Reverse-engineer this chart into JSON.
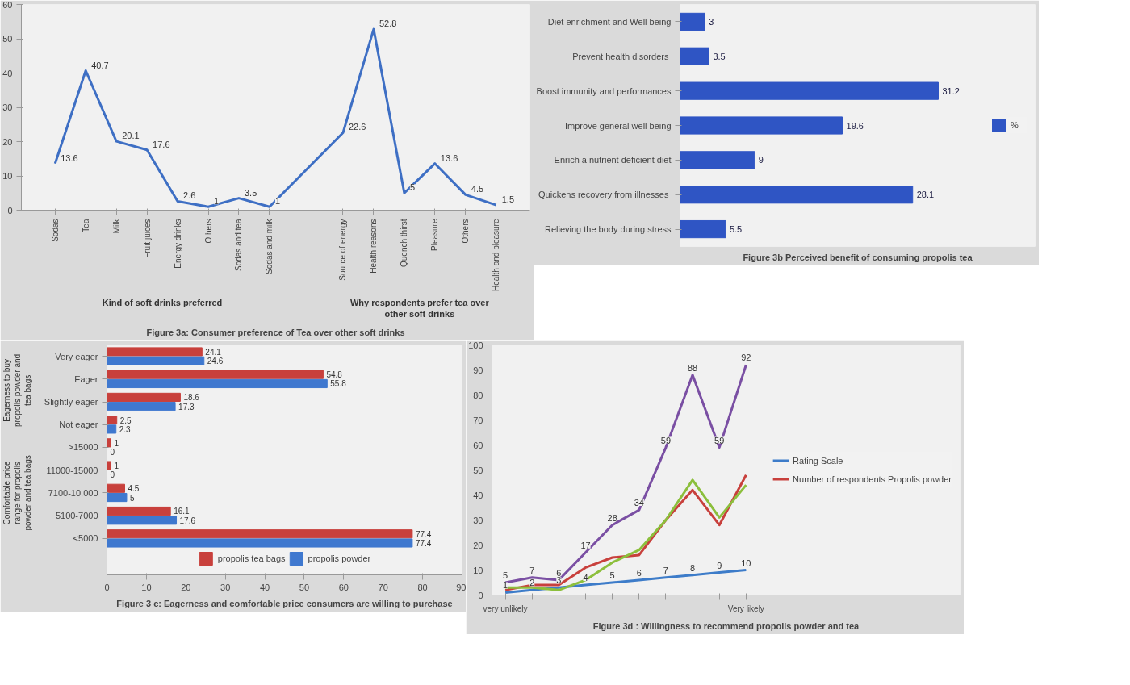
{
  "chart_data": [
    {
      "type": "line",
      "title": "Figure 3a: Consumer preference of Tea over other soft drinks",
      "categories": [
        "Sodas",
        "Tea",
        "Milk",
        "Fruit juices",
        "Energy drinks",
        "Others",
        "Sodas and tea",
        "Sodas and milk",
        "Source of energy",
        "Health reasons",
        "Quench thirst",
        "Pleasure",
        "Others",
        "Health and pleasure"
      ],
      "series": [
        {
          "color": "#3e6fc4",
          "values": [
            13.6,
            40.7,
            20.1,
            17.6,
            2.6,
            1,
            3.5,
            1,
            22.6,
            52.8,
            5,
            13.6,
            4.5,
            1.5
          ]
        }
      ],
      "annotations": [
        "Kind of soft drinks preferred",
        "Why respondents prefer tea over other soft drinks"
      ],
      "ylim": [
        0,
        60
      ],
      "yticks": [
        0,
        10,
        20,
        30,
        40,
        50,
        60
      ],
      "data_labels": true
    },
    {
      "type": "bar",
      "orientation": "horizontal",
      "title": "Figure 3b Perceived benefit of consuming propolis tea",
      "categories": [
        "Diet enrichment and Well being",
        "Prevent  health disorders",
        "Boost immunity and performances",
        "Improve general well being",
        "Enrich a nutrient deficient diet",
        "Quickens recovery from  illnesses",
        "Relieving the body during stress"
      ],
      "series": [
        {
          "name": "%",
          "color": "#2f55c4",
          "values": [
            3,
            3.5,
            31.2,
            19.6,
            9,
            28.1,
            5.5
          ]
        }
      ],
      "data_labels": true,
      "legend": "right",
      "tick_labels": "y"
    },
    {
      "type": "bar",
      "orientation": "horizontal",
      "title": "Figure 3 c: Eagerness and comfortable price consumers are willing to purchase",
      "categories": [
        "Very eager",
        "Eager",
        "Slightly eager",
        "Not eager",
        ">15000",
        "11000-15000",
        "7100-10,000",
        "5100-7000",
        "<5000"
      ],
      "series": [
        {
          "name": "propolis tea bags",
          "color": "#c8403c",
          "values": [
            24.1,
            54.8,
            18.6,
            2.5,
            1,
            1,
            4.5,
            16.1,
            77.4
          ]
        },
        {
          "name": "propolis powder",
          "color": "#3f78cf",
          "values": [
            24.6,
            55.8,
            17.3,
            2.3,
            0,
            0,
            5,
            17.6,
            77.4
          ]
        }
      ],
      "annotations": [
        "Eagerness to buy propolis powder and tea bags",
        "Comfortable price range for propolis powder and tea bags"
      ],
      "xlim": [
        0,
        90
      ],
      "xticks": [
        0,
        10,
        20,
        30,
        40,
        50,
        60,
        70,
        80,
        90
      ],
      "data_labels": true,
      "legend": "bottom"
    },
    {
      "type": "line",
      "title": "Figure 3d : Willingness to recommend propolis powder and tea",
      "categories": [
        "very unlikely",
        null,
        null,
        null,
        null,
        null,
        null,
        null,
        null,
        "Very likely"
      ],
      "series": [
        {
          "name": "Rating Scale",
          "color": "#3d7cc9",
          "values": [
            1,
            2,
            3,
            4,
            5,
            6,
            7,
            8,
            9,
            10
          ],
          "value_labels": [
            "1",
            "2",
            "3",
            "4",
            "5",
            "6",
            "7",
            "8",
            "9",
            "10"
          ]
        },
        {
          "color": "#7a4fa3",
          "values": [
            5,
            7,
            6,
            17,
            28,
            34,
            59,
            88,
            59,
            92
          ],
          "value_labels": [
            "5",
            "7",
            "6",
            "17",
            "28",
            "34",
            "59",
            "88",
            "59",
            "92"
          ]
        },
        {
          "name": "Number of respondents Propolis powder",
          "color": "#c8403c",
          "values": [
            2,
            4,
            4,
            11,
            15,
            16,
            30,
            42,
            28,
            48
          ]
        },
        {
          "color": "#8cbf3c",
          "values": [
            3,
            3,
            2,
            6,
            13,
            18,
            30,
            46,
            31,
            44
          ]
        }
      ],
      "ylim": [
        0,
        100
      ],
      "yticks": [
        0,
        10,
        20,
        30,
        40,
        50,
        60,
        70,
        80,
        90,
        100
      ],
      "legend": "right"
    }
  ]
}
